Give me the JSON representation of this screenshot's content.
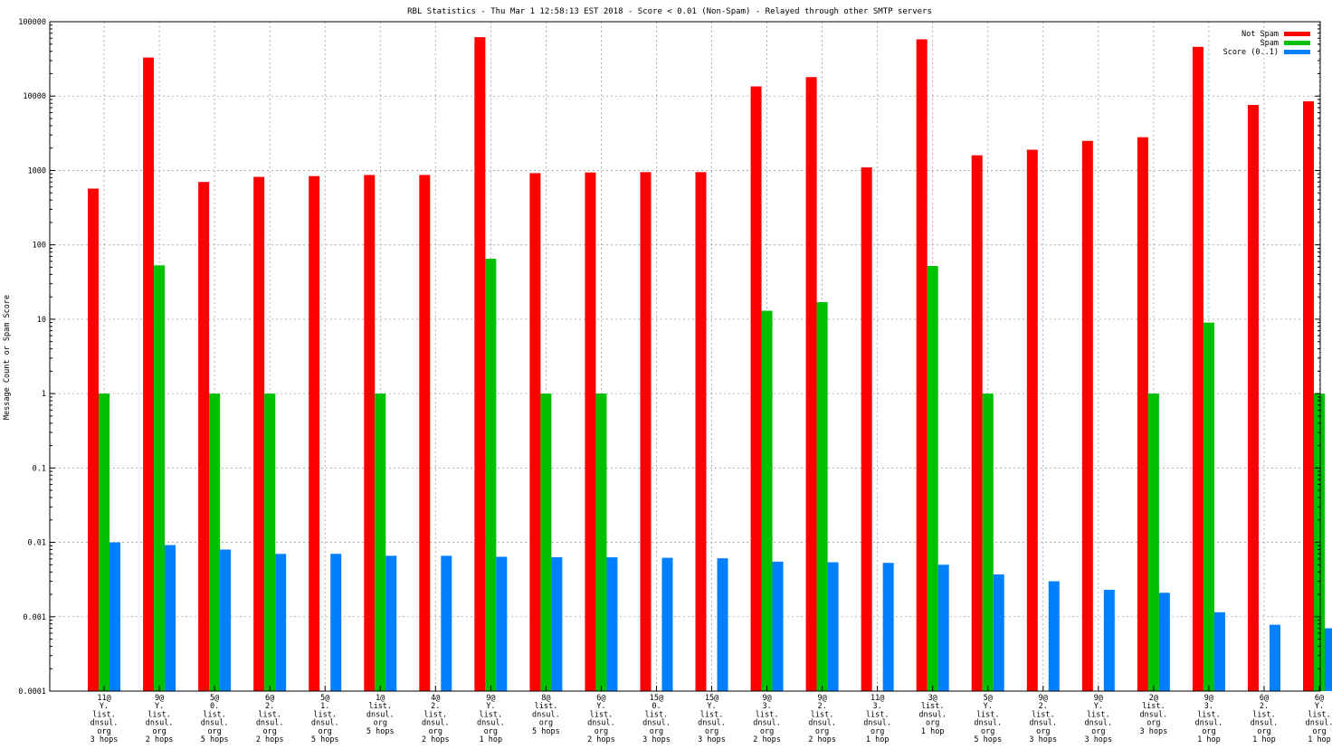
{
  "chart_data": {
    "type": "bar",
    "title": "RBL Statistics - Thu Mar  1 12:58:13 EST 2018 - Score < 0.01 (Non-Spam) - Relayed through other SMTP servers",
    "xlabel": "",
    "ylabel": "Message Count or Spam Score",
    "yscale": "log",
    "ylim": [
      0.0001,
      100000
    ],
    "yticks": [
      "0.0001",
      "0.001",
      "0.01",
      "0.1",
      "1",
      "10",
      "100",
      "1000",
      "10000",
      "100000"
    ],
    "grid": true,
    "legend_position": "top-right",
    "categories": [
      [
        "11@",
        "Y.",
        "list.",
        "dnsul.",
        "org",
        "3 hops"
      ],
      [
        "9@",
        "Y.",
        "list.",
        "dnsul.",
        "org",
        "2 hops"
      ],
      [
        "5@",
        "0.",
        "list.",
        "dnsul.",
        "org",
        "5 hops"
      ],
      [
        "6@",
        "2.",
        "list.",
        "dnsul.",
        "org",
        "2 hops"
      ],
      [
        "5@",
        "1.",
        "list.",
        "dnsul.",
        "org",
        "5 hops"
      ],
      [
        "1@",
        "list.",
        "dnsul.",
        "org",
        "5 hops"
      ],
      [
        "4@",
        "2.",
        "list.",
        "dnsul.",
        "org",
        "2 hops"
      ],
      [
        "9@",
        "Y.",
        "list.",
        "dnsul.",
        "org",
        "1 hop"
      ],
      [
        "8@",
        "list.",
        "dnsul.",
        "org",
        "5 hops"
      ],
      [
        "6@",
        "Y.",
        "list.",
        "dnsul.",
        "org",
        "2 hops"
      ],
      [
        "15@",
        "0.",
        "list.",
        "dnsul.",
        "org",
        "3 hops"
      ],
      [
        "15@",
        "Y.",
        "list.",
        "dnsul.",
        "org",
        "3 hops"
      ],
      [
        "9@",
        "3.",
        "list.",
        "dnsul.",
        "org",
        "2 hops"
      ],
      [
        "9@",
        "2.",
        "list.",
        "dnsul.",
        "org",
        "2 hops"
      ],
      [
        "11@",
        "3.",
        "list.",
        "dnsul.",
        "org",
        "1 hop"
      ],
      [
        "3@",
        "list.",
        "dnsul.",
        "org",
        "1 hop"
      ],
      [
        "5@",
        "Y.",
        "list.",
        "dnsul.",
        "org",
        "5 hops"
      ],
      [
        "9@",
        "2.",
        "list.",
        "dnsul.",
        "org",
        "3 hops"
      ],
      [
        "9@",
        "Y.",
        "list.",
        "dnsul.",
        "org",
        "3 hops"
      ],
      [
        "2@",
        "list.",
        "dnsul.",
        "org",
        "3 hops"
      ],
      [
        "9@",
        "3.",
        "list.",
        "dnsul.",
        "org",
        "1 hop"
      ],
      [
        "6@",
        "2.",
        "list.",
        "dnsul.",
        "org",
        "1 hop"
      ],
      [
        "6@",
        "Y.",
        "list.",
        "dnsul.",
        "org",
        "1 hop"
      ]
    ],
    "series": [
      {
        "name": "Not Spam",
        "color": "#ff0000",
        "values": [
          570,
          33000,
          700,
          820,
          840,
          870,
          870,
          62000,
          920,
          940,
          950,
          950,
          13500,
          18000,
          1100,
          58000,
          1600,
          1900,
          2500,
          2800,
          46000,
          7600,
          8500
        ]
      },
      {
        "name": "Spam",
        "color": "#00c000",
        "values": [
          1,
          53,
          1,
          1,
          null,
          1,
          null,
          65,
          1,
          1,
          null,
          null,
          13,
          17,
          null,
          52,
          1,
          null,
          null,
          1,
          9,
          null,
          1
        ]
      },
      {
        "name": "Score (0..1)",
        "color": "#0080ff",
        "values": [
          0.01,
          0.0092,
          0.008,
          0.007,
          0.007,
          0.0066,
          0.0066,
          0.0064,
          0.0063,
          0.0063,
          0.0062,
          0.0061,
          0.0055,
          0.0054,
          0.0053,
          0.005,
          0.0037,
          0.003,
          0.0023,
          0.0021,
          0.00115,
          0.00078,
          0.0007
        ]
      }
    ]
  }
}
